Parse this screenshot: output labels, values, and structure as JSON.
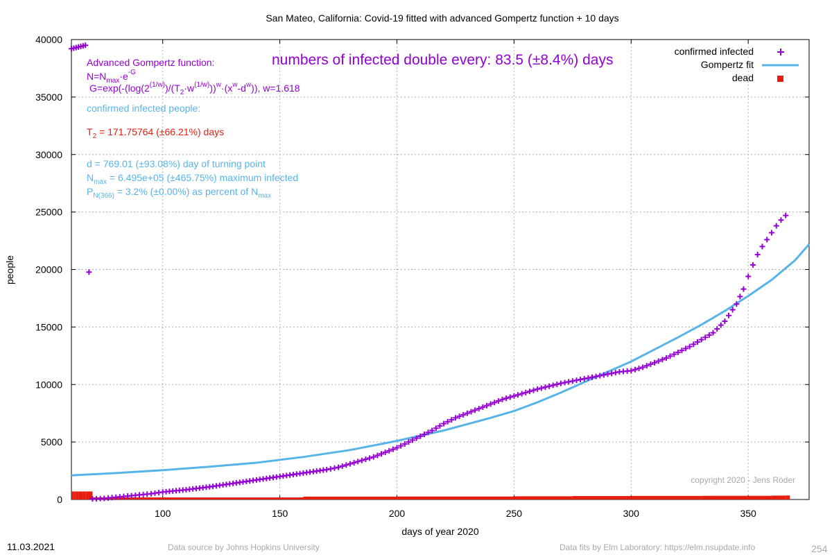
{
  "footer": {
    "date": "11.03.2021",
    "source": "Data source by Johns Hopkins University",
    "fits": "Data fits by Elm Laboratory: https://elm.nsupdate.info",
    "page": "254"
  },
  "colors": {
    "infected": "#9400d3",
    "fit": "#56b4e9",
    "dead": "#e51e10",
    "info": "#56b4e9"
  },
  "annotations": {
    "gompertz_title": "Advanced Gompertz function:",
    "formula_n_main": "N=N",
    "formula_n_sub": "max",
    "formula_n_rest": "·e",
    "formula_n_sup": "-G",
    "formula_g_1": "G=exp(-(log(2",
    "formula_g_sup1": "(1/w)",
    "formula_g_2": ")/(T",
    "formula_g_sub2": "2",
    "formula_g_3": "·w",
    "formula_g_sup3": "(1/w)",
    "formula_g_4": "))",
    "formula_g_sup4": "w",
    "formula_g_5": "·(x",
    "formula_g_sup5": "w",
    "formula_g_6": "-d",
    "formula_g_sup6": "w",
    "formula_g_7": ")), w=1.618",
    "doubling": "numbers of infected double every: 83.5 (±8.4%) days",
    "confirmed_label": "confirmed infected people:",
    "t2_main": "T",
    "t2_sub": "2",
    "t2_rest": " = 171.75764 (±66.21%) days",
    "d_line": "d = 769.01 (±93.08%) day of turning point",
    "nmax_main": "N",
    "nmax_sub": "max",
    "nmax_rest": " = 6.495e+05 (±465.75%) maximum infected",
    "p_main": "P",
    "p_sub": "N(366)",
    "p_rest": " = 3.2% (±0.00%) as percent of N",
    "p_sub2": "max",
    "copyright": "copyright 2020 - Jens Röder"
  },
  "chart_data": {
    "type": "scatter",
    "title": "San Mateo,  California: Covid-19 fitted with advanced Gompertz function + 10 days",
    "xlabel": "days of year 2020",
    "ylabel": "people",
    "xlim": [
      61,
      376
    ],
    "ylim": [
      0,
      40000
    ],
    "xticks": [
      100,
      150,
      200,
      250,
      300,
      350
    ],
    "yticks": [
      0,
      5000,
      10000,
      15000,
      20000,
      25000,
      30000,
      35000,
      40000
    ],
    "grid": true,
    "legend_position": "top-right",
    "series": [
      {
        "name": "confirmed infected",
        "kind": "points",
        "x": [
          61,
          62,
          63,
          64,
          65,
          66,
          67,
          70,
          75,
          80,
          85,
          90,
          95,
          100,
          110,
          120,
          130,
          140,
          150,
          160,
          170,
          175,
          180,
          185,
          190,
          195,
          200,
          205,
          210,
          215,
          220,
          225,
          230,
          235,
          240,
          245,
          250,
          255,
          260,
          265,
          270,
          275,
          280,
          285,
          290,
          295,
          300,
          305,
          310,
          315,
          320,
          325,
          330,
          335,
          340,
          345,
          348,
          350,
          352,
          354,
          356,
          358,
          360,
          362,
          364,
          366
        ],
        "y": [
          39200,
          39250,
          39300,
          39350,
          39400,
          39450,
          39500,
          50,
          100,
          200,
          300,
          400,
          500,
          650,
          850,
          1100,
          1400,
          1700,
          2000,
          2300,
          2600,
          2800,
          3100,
          3400,
          3700,
          4100,
          4500,
          5000,
          5500,
          6000,
          6600,
          7100,
          7500,
          7900,
          8300,
          8700,
          9000,
          9300,
          9600,
          9850,
          10100,
          10300,
          10500,
          10700,
          10900,
          11100,
          11200,
          11500,
          11900,
          12300,
          12800,
          13300,
          13900,
          14500,
          15500,
          17000,
          18300,
          19400,
          20400,
          21300,
          22000,
          22600,
          23200,
          23800,
          24300,
          24700
        ]
      },
      {
        "name": "Gompertz fit",
        "kind": "line",
        "x": [
          61,
          80,
          100,
          120,
          140,
          160,
          180,
          200,
          220,
          240,
          250,
          260,
          270,
          280,
          290,
          300,
          310,
          320,
          330,
          340,
          350,
          360,
          370,
          376
        ],
        "y": [
          2100,
          2300,
          2550,
          2850,
          3200,
          3700,
          4300,
          5100,
          6000,
          7100,
          7700,
          8450,
          9300,
          10200,
          11100,
          12000,
          13050,
          14100,
          15200,
          16400,
          17700,
          19100,
          20800,
          22200
        ]
      },
      {
        "name": "dead",
        "kind": "bars",
        "x": [
          61,
          62,
          63,
          64,
          65,
          66,
          67,
          70,
          80,
          90,
          100,
          110,
          113,
          160,
          200,
          250,
          275,
          300,
          330,
          360,
          366
        ],
        "y": [
          700,
          700,
          700,
          700,
          700,
          700,
          700,
          80,
          80,
          80,
          80,
          80,
          150,
          250,
          260,
          280,
          300,
          310,
          320,
          340,
          350
        ]
      }
    ]
  }
}
